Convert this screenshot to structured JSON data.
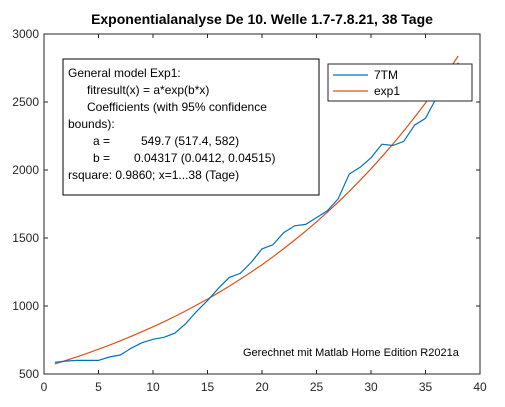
{
  "chart_data": {
    "type": "line",
    "title": "Exponentialanalyse De 10. Welle 1.7-7.8.21, 38 Tage",
    "xlabel": "",
    "ylabel": "",
    "xlim": [
      0,
      40
    ],
    "ylim": [
      500,
      3000
    ],
    "x_ticks": [
      0,
      5,
      10,
      15,
      20,
      25,
      30,
      35,
      40
    ],
    "y_ticks": [
      500,
      1000,
      1500,
      2000,
      2500,
      3000
    ],
    "grid": false,
    "legend_position": "top-right",
    "series": [
      {
        "name": "7TM",
        "color": "#0072BD",
        "x": [
          1,
          2,
          3,
          4,
          5,
          6,
          7,
          8,
          9,
          10,
          11,
          12,
          13,
          14,
          15,
          16,
          17,
          18,
          19,
          20,
          21,
          22,
          23,
          24,
          25,
          26,
          27,
          28,
          29,
          30,
          31,
          32,
          33,
          34,
          35,
          36,
          37,
          38
        ],
        "values": [
          585,
          595,
          600,
          600,
          600,
          625,
          640,
          690,
          730,
          755,
          770,
          800,
          870,
          960,
          1040,
          1130,
          1210,
          1240,
          1320,
          1420,
          1450,
          1540,
          1590,
          1600,
          1650,
          1700,
          1790,
          1970,
          2020,
          2090,
          2190,
          2180,
          2210,
          2330,
          2380,
          2530,
          2640,
          2790
        ]
      },
      {
        "name": "exp1",
        "color": "#D95319",
        "x": [
          1,
          2,
          3,
          4,
          5,
          6,
          7,
          8,
          9,
          10,
          11,
          12,
          13,
          14,
          15,
          16,
          17,
          18,
          19,
          20,
          21,
          22,
          23,
          24,
          25,
          26,
          27,
          28,
          29,
          30,
          31,
          32,
          33,
          34,
          35,
          36,
          37,
          38
        ],
        "values": [
          574,
          599,
          626,
          653,
          682,
          712,
          744,
          777,
          811,
          847,
          884,
          923,
          964,
          1007,
          1051,
          1097,
          1146,
          1196,
          1249,
          1304,
          1362,
          1422,
          1485,
          1550,
          1619,
          1690,
          1765,
          1843,
          1924,
          2009,
          2098,
          2190,
          2287,
          2388,
          2493,
          2603,
          2718,
          2838
        ]
      }
    ]
  },
  "fit_box": {
    "line1": "General model Exp1:",
    "line2": "fitresult(x) = a*exp(b*x)",
    "line3": "Coefficients (with 95% confidence",
    "line4": "bounds):",
    "line5_label": "a =",
    "line5_value": "549.7  (517.4, 582)",
    "line6_label": "b =",
    "line6_value": "0.04317  (0.0412, 0.04515)",
    "line7": "rsquare: 0.9860; x=1...38 (Tage)"
  },
  "note": "Gerechnet mit Matlab Home Edition R2021a"
}
